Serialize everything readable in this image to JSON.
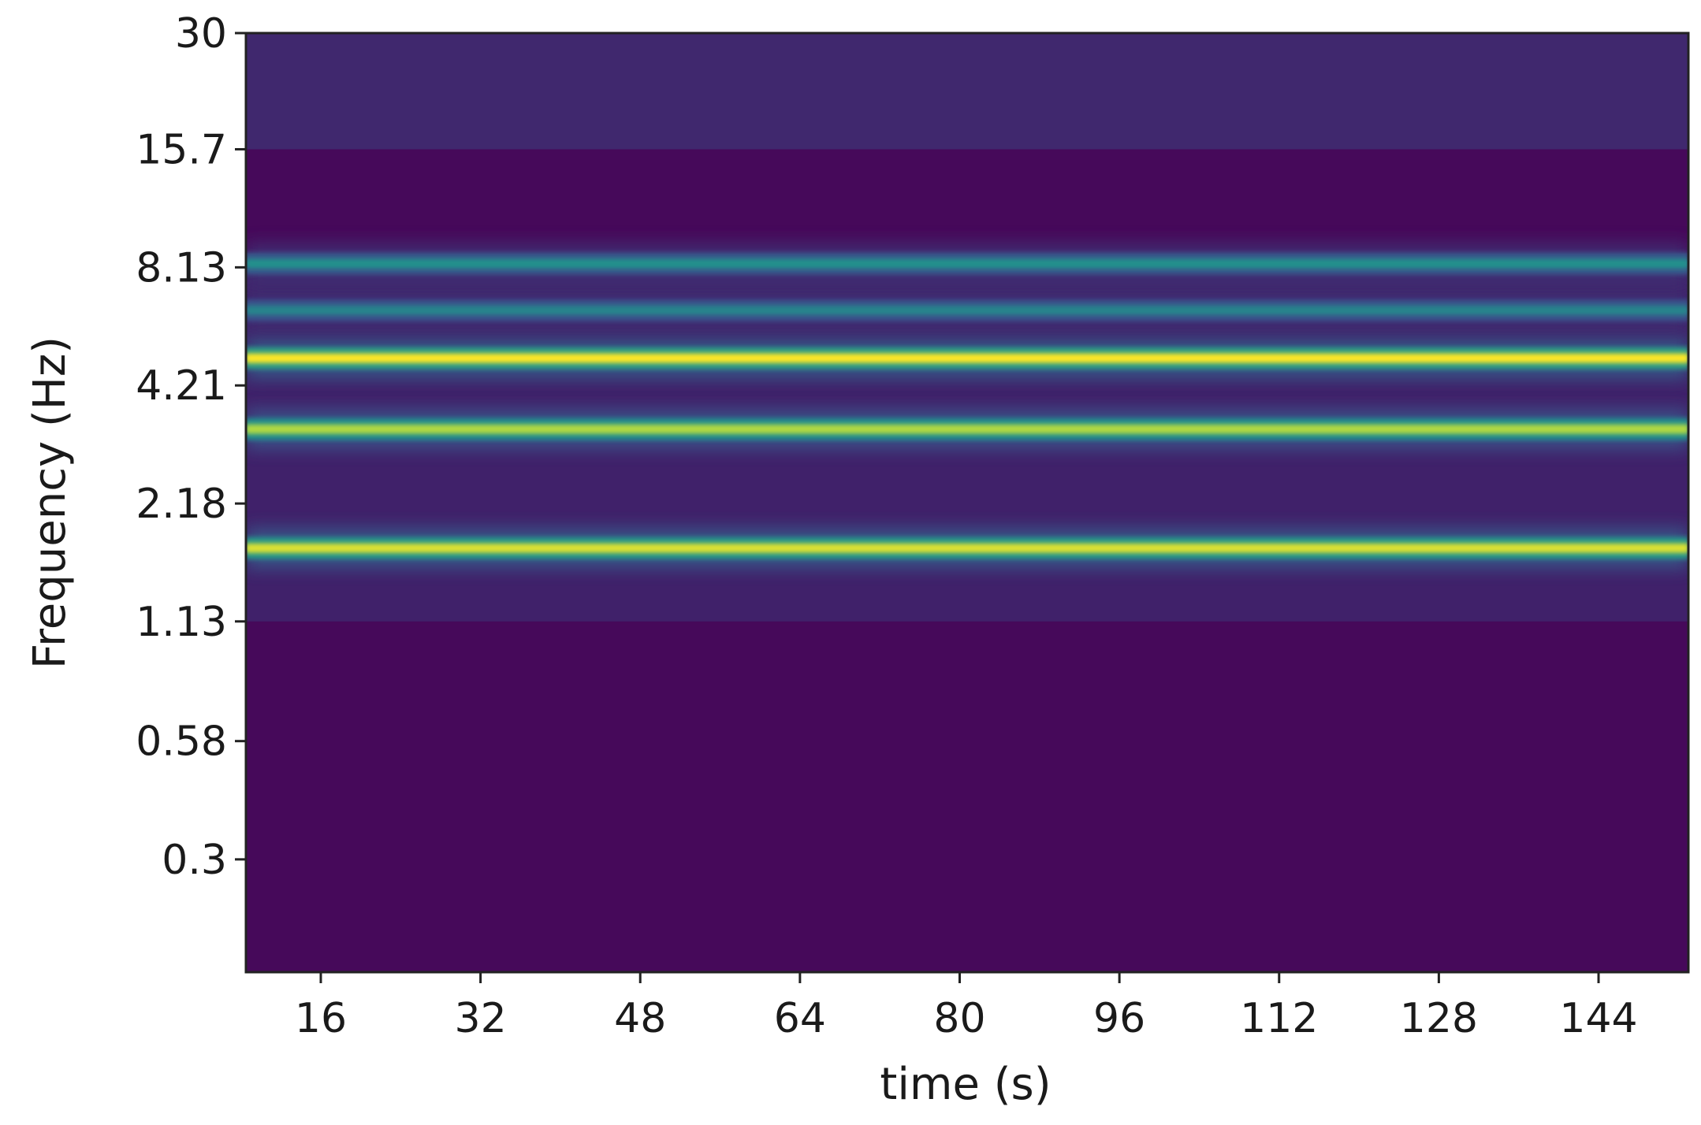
{
  "chart_data": {
    "type": "heatmap",
    "title": "",
    "xlabel": "time (s)",
    "ylabel": "Frequency (Hz)",
    "x_ticks": [
      16,
      32,
      48,
      64,
      80,
      96,
      112,
      128,
      144
    ],
    "x_tick_labels": [
      "16",
      "32",
      "48",
      "64",
      "80",
      "96",
      "112",
      "128",
      "144"
    ],
    "xlim": [
      8.5,
      153
    ],
    "y_scale": "log",
    "y_ticks": [
      30,
      15.7,
      8.13,
      4.21,
      2.18,
      1.13,
      0.58,
      0.3
    ],
    "y_tick_labels": [
      "30",
      "15.7",
      "8.13",
      "4.21",
      "2.18",
      "1.13",
      "0.58",
      "0.3"
    ],
    "ylim": [
      0.16,
      30
    ],
    "grid": false,
    "colormap": "viridis",
    "background_color": "#46095a",
    "bands": [
      {
        "freq_hz": 1.7,
        "start_s": 8.5,
        "end_s": 153,
        "intensity": 0.95
      },
      {
        "freq_hz": 3.3,
        "start_s": 8.5,
        "end_s": 153,
        "intensity": 0.88
      },
      {
        "freq_hz": 4.9,
        "start_s": 8.5,
        "end_s": 153,
        "intensity": 1.0
      },
      {
        "freq_hz": 6.4,
        "start_s": 8.5,
        "end_s": 153,
        "intensity": 0.45
      },
      {
        "freq_hz": 8.3,
        "start_s": 8.5,
        "end_s": 153,
        "intensity": 0.5
      }
    ],
    "regions": [
      {
        "freq_min_hz": 15.7,
        "freq_max_hz": 30,
        "intensity": 0.12
      },
      {
        "freq_min_hz": 1.13,
        "freq_max_hz": 8.8,
        "intensity": 0.1
      }
    ]
  }
}
